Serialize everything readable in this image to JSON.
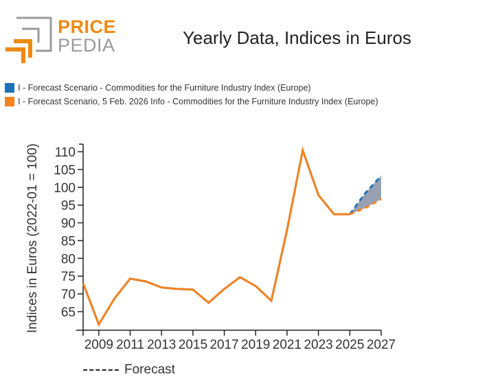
{
  "logo": {
    "line1": "PRICE",
    "line2": "PEDIA",
    "primary_color": "#ef8a14",
    "secondary_color": "#9a9a9a"
  },
  "header": {
    "title": "Yearly Data, Indices in Euros"
  },
  "legend": {
    "items": [
      {
        "label": "I - Forecast Scenario - Commodities for the Furniture Industry Index (Europe)",
        "color": "#1f6fb4"
      },
      {
        "label": "I - Forecast Scenario, 5 Feb. 2026 Info - Commodities for the Furniture Industry Index (Europe)",
        "color": "#f5831f"
      }
    ]
  },
  "forecast_legend": {
    "label": "Forecast"
  },
  "chart_data": {
    "type": "line",
    "title": "Yearly Data, Indices in Euros",
    "xlabel": "",
    "ylabel": "Indices in Euros (2022-01 = 100)",
    "xlim": [
      2008,
      2027
    ],
    "ylim": [
      60,
      112
    ],
    "x_ticks": [
      "2009",
      "2011",
      "2013",
      "2015",
      "2017",
      "2019",
      "2021",
      "2023",
      "2025",
      "2027"
    ],
    "y_ticks": [
      "65",
      "70",
      "75",
      "80",
      "85",
      "90",
      "95",
      "100",
      "105",
      "110"
    ],
    "grid": false,
    "forecast_start": 2025,
    "x": [
      2008,
      2009,
      2010,
      2011,
      2012,
      2013,
      2014,
      2015,
      2016,
      2017,
      2018,
      2019,
      2020,
      2021,
      2022,
      2023,
      2024,
      2025,
      2026,
      2027
    ],
    "series": [
      {
        "name": "I - Forecast Scenario - Commodities for the Furniture Industry Index (Europe)",
        "color": "#1f6fb4",
        "values": [
          73.0,
          61.4,
          68.7,
          74.3,
          73.5,
          71.8,
          71.4,
          71.2,
          67.5,
          71.4,
          74.7,
          72.2,
          68.1,
          88.0,
          110.4,
          97.8,
          92.4,
          92.4,
          98.4,
          103.2
        ]
      },
      {
        "name": "I - Forecast Scenario, 5 Feb. 2026 Info - Commodities for the Furniture Industry Index (Europe)",
        "color": "#f5831f",
        "values": [
          73.0,
          61.4,
          68.7,
          74.3,
          73.5,
          71.8,
          71.4,
          71.2,
          67.5,
          71.4,
          74.7,
          72.2,
          68.1,
          88.0,
          110.4,
          97.8,
          92.4,
          92.4,
          94.2,
          96.7
        ]
      }
    ],
    "band_color": "#8d97a8"
  }
}
